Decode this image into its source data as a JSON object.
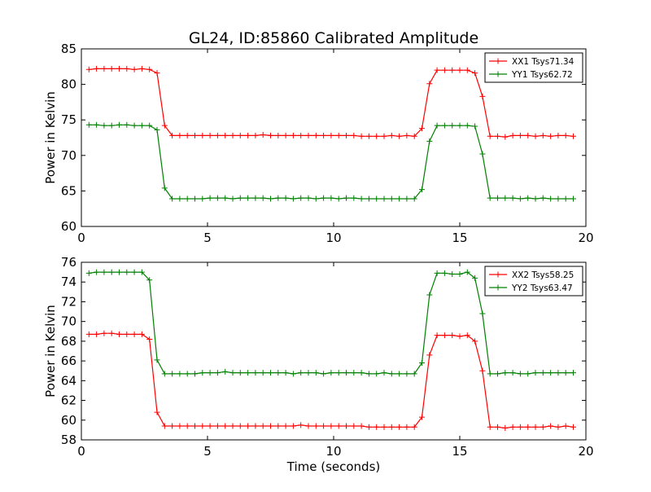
{
  "title": "GL24, ID:85860 Calibrated Amplitude",
  "xlabel": "Time (seconds)",
  "colors": {
    "red": "#ff0000",
    "green": "#008000"
  },
  "chart_data": [
    {
      "type": "line",
      "ylabel": "Power in Kelvin",
      "xlim": [
        0,
        20
      ],
      "ylim": [
        60,
        85
      ],
      "xticks": [
        "0",
        "5",
        "10",
        "15",
        "20"
      ],
      "yticks": [
        "60",
        "65",
        "70",
        "75",
        "80",
        "85"
      ],
      "legend_position": "top-right",
      "grid": false,
      "x": [
        0.3,
        0.6,
        0.9,
        1.2,
        1.5,
        1.8,
        2.1,
        2.4,
        2.7,
        3.0,
        3.3,
        3.6,
        3.9,
        4.2,
        4.5,
        4.8,
        5.1,
        5.4,
        5.7,
        6.0,
        6.3,
        6.6,
        6.9,
        7.2,
        7.5,
        7.8,
        8.1,
        8.4,
        8.7,
        9.0,
        9.3,
        9.6,
        9.9,
        10.2,
        10.5,
        10.8,
        11.1,
        11.4,
        11.7,
        12.0,
        12.3,
        12.6,
        12.9,
        13.2,
        13.5,
        13.8,
        14.1,
        14.4,
        14.7,
        15.0,
        15.3,
        15.6,
        15.9,
        16.2,
        16.5,
        16.8,
        17.1,
        17.4,
        17.7,
        18.0,
        18.3,
        18.6,
        18.9,
        19.2,
        19.5
      ],
      "series": [
        {
          "name": "XX1 Tsys71.34",
          "color": "#ff0000",
          "values": [
            82.1,
            82.2,
            82.2,
            82.2,
            82.2,
            82.2,
            82.1,
            82.2,
            82.1,
            81.6,
            74.2,
            72.8,
            72.8,
            72.8,
            72.8,
            72.8,
            72.8,
            72.8,
            72.8,
            72.8,
            72.8,
            72.8,
            72.8,
            72.9,
            72.8,
            72.8,
            72.8,
            72.8,
            72.8,
            72.8,
            72.8,
            72.8,
            72.8,
            72.8,
            72.8,
            72.8,
            72.7,
            72.7,
            72.7,
            72.7,
            72.8,
            72.7,
            72.8,
            72.7,
            73.8,
            80.1,
            82.0,
            82.0,
            82.0,
            82.0,
            82.0,
            81.6,
            78.3,
            72.7,
            72.7,
            72.6,
            72.8,
            72.8,
            72.8,
            72.7,
            72.8,
            72.7,
            72.8,
            72.8,
            72.7
          ]
        },
        {
          "name": "YY1 Tsys62.72",
          "color": "#008000",
          "values": [
            74.3,
            74.3,
            74.2,
            74.2,
            74.3,
            74.3,
            74.2,
            74.2,
            74.2,
            73.6,
            65.4,
            63.9,
            63.9,
            63.9,
            63.9,
            63.9,
            64.0,
            64.0,
            64.0,
            63.9,
            64.0,
            64.0,
            64.0,
            64.0,
            63.9,
            64.0,
            64.0,
            63.9,
            64.0,
            64.0,
            63.9,
            64.0,
            64.0,
            63.9,
            64.0,
            64.0,
            63.9,
            63.9,
            63.9,
            63.9,
            63.9,
            63.9,
            63.9,
            63.9,
            65.2,
            72.0,
            74.2,
            74.2,
            74.2,
            74.2,
            74.2,
            74.1,
            70.2,
            64.0,
            64.0,
            64.0,
            64.0,
            63.9,
            64.0,
            63.9,
            64.0,
            63.9,
            63.9,
            63.9,
            63.9
          ]
        }
      ]
    },
    {
      "type": "line",
      "ylabel": "Power in Kelvin",
      "xlabel": "Time (seconds)",
      "xlim": [
        0,
        20
      ],
      "ylim": [
        58,
        76
      ],
      "xticks": [
        "0",
        "5",
        "10",
        "15",
        "20"
      ],
      "yticks": [
        "58",
        "60",
        "62",
        "64",
        "66",
        "68",
        "70",
        "72",
        "74",
        "76"
      ],
      "legend_position": "top-right",
      "grid": false,
      "x": [
        0.3,
        0.6,
        0.9,
        1.2,
        1.5,
        1.8,
        2.1,
        2.4,
        2.7,
        3.0,
        3.3,
        3.6,
        3.9,
        4.2,
        4.5,
        4.8,
        5.1,
        5.4,
        5.7,
        6.0,
        6.3,
        6.6,
        6.9,
        7.2,
        7.5,
        7.8,
        8.1,
        8.4,
        8.7,
        9.0,
        9.3,
        9.6,
        9.9,
        10.2,
        10.5,
        10.8,
        11.1,
        11.4,
        11.7,
        12.0,
        12.3,
        12.6,
        12.9,
        13.2,
        13.5,
        13.8,
        14.1,
        14.4,
        14.7,
        15.0,
        15.3,
        15.6,
        15.9,
        16.2,
        16.5,
        16.8,
        17.1,
        17.4,
        17.7,
        18.0,
        18.3,
        18.6,
        18.9,
        19.2,
        19.5
      ],
      "series": [
        {
          "name": "XX2 Tsys58.25",
          "color": "#ff0000",
          "values": [
            68.7,
            68.7,
            68.8,
            68.8,
            68.7,
            68.7,
            68.7,
            68.7,
            68.2,
            60.8,
            59.4,
            59.4,
            59.4,
            59.4,
            59.4,
            59.4,
            59.4,
            59.4,
            59.4,
            59.4,
            59.4,
            59.4,
            59.4,
            59.4,
            59.4,
            59.4,
            59.4,
            59.4,
            59.5,
            59.4,
            59.4,
            59.4,
            59.4,
            59.4,
            59.4,
            59.4,
            59.4,
            59.3,
            59.3,
            59.3,
            59.3,
            59.3,
            59.3,
            59.3,
            60.3,
            66.6,
            68.6,
            68.6,
            68.6,
            68.5,
            68.6,
            68.0,
            65.0,
            59.3,
            59.3,
            59.2,
            59.3,
            59.3,
            59.3,
            59.3,
            59.3,
            59.4,
            59.3,
            59.4,
            59.3
          ]
        },
        {
          "name": "YY2 Tsys63.47",
          "color": "#008000",
          "values": [
            74.9,
            75.0,
            75.0,
            75.0,
            75.0,
            75.0,
            75.0,
            75.0,
            74.2,
            66.1,
            64.7,
            64.7,
            64.7,
            64.7,
            64.7,
            64.8,
            64.8,
            64.8,
            64.9,
            64.8,
            64.8,
            64.8,
            64.8,
            64.8,
            64.8,
            64.8,
            64.8,
            64.7,
            64.8,
            64.8,
            64.8,
            64.7,
            64.8,
            64.8,
            64.8,
            64.8,
            64.8,
            64.7,
            64.7,
            64.8,
            64.7,
            64.7,
            64.7,
            64.7,
            65.8,
            72.7,
            74.9,
            74.9,
            74.8,
            74.8,
            75.0,
            74.4,
            70.8,
            64.7,
            64.7,
            64.8,
            64.8,
            64.7,
            64.7,
            64.8,
            64.8,
            64.8,
            64.8,
            64.8,
            64.8
          ]
        }
      ]
    }
  ]
}
